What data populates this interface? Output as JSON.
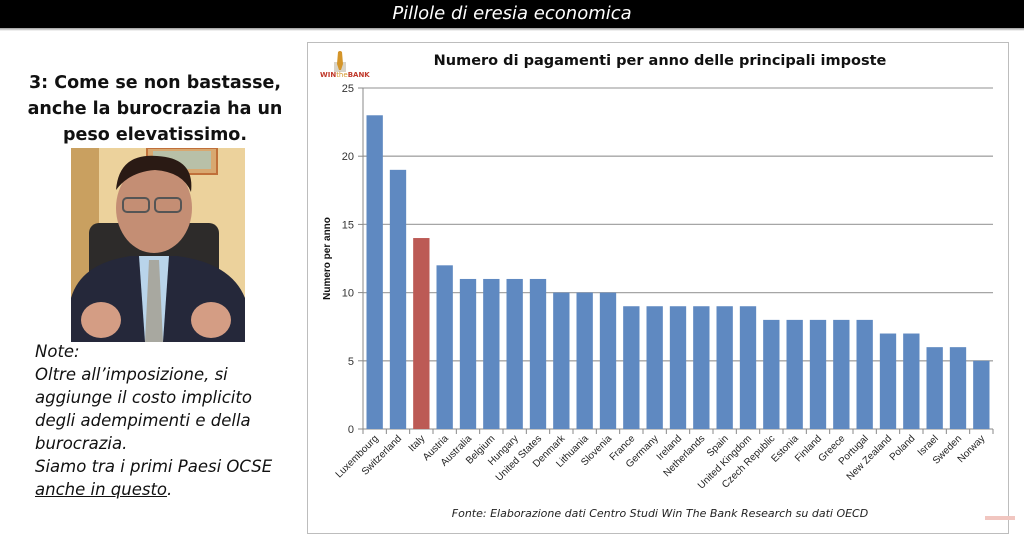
{
  "header": {
    "title": "Pillole di eresia economica"
  },
  "left_panel": {
    "heading_lines": [
      "3: Come se non bastasse,",
      "anche la burocrazia ha un",
      "peso elevatissimo."
    ],
    "photo_description": "presenter-video-thumbnail",
    "notes": {
      "label": "Note:",
      "lines": [
        "Oltre all’imposizione, si",
        "aggiunge il costo implicito",
        "degli adempimenti e della",
        "burocrazia.",
        "Siamo tra i primi Paesi OCSE"
      ],
      "underlined": "anche in questo",
      "trailing": "."
    }
  },
  "logo": {
    "text_win": "WIN",
    "text_the": "the",
    "text_bank": "BANK"
  },
  "source": "Fonte: Elaborazione dati Centro Studi Win The Bank Research su dati OECD",
  "colors": {
    "bar": "#5f89c1",
    "highlight": "#bc5a55",
    "grid": "#a6a6a6"
  },
  "chart_data": {
    "type": "bar",
    "title": "Numero di pagamenti per anno delle principali imposte",
    "xlabel": "",
    "ylabel": "Numero per anno",
    "ylim": [
      0,
      25
    ],
    "yticks": [
      0,
      5,
      10,
      15,
      20,
      25
    ],
    "grid": true,
    "highlight": "Italy",
    "categories": [
      "Luxembourg",
      "Switzerland",
      "Italy",
      "Austria",
      "Australia",
      "Belgium",
      "Hungary",
      "United States",
      "Denmark",
      "Lithuania",
      "Slovenia",
      "France",
      "Germany",
      "Ireland",
      "Netherlands",
      "Spain",
      "United Kingdom",
      "Czech Republic",
      "Estonia",
      "Finland",
      "Greece",
      "Portugal",
      "New Zealand",
      "Poland",
      "Israel",
      "Sweden",
      "Norway"
    ],
    "values": [
      23,
      19,
      14,
      12,
      11,
      11,
      11,
      11,
      10,
      10,
      10,
      9,
      9,
      9,
      9,
      9,
      9,
      8,
      8,
      8,
      8,
      8,
      7,
      7,
      6,
      6,
      5
    ]
  }
}
